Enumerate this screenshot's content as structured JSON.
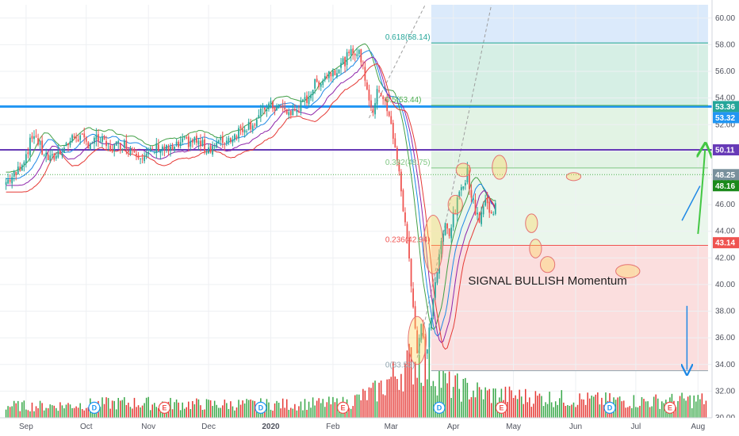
{
  "chart_data": {
    "type": "candlestick",
    "y_axis": {
      "range": [
        30.0,
        61.0
      ],
      "ticks": [
        "30.00",
        "32.00",
        "34.00",
        "36.00",
        "38.00",
        "40.00",
        "42.00",
        "44.00",
        "46.00",
        "48.00",
        "50.00",
        "52.00",
        "54.00",
        "56.00",
        "58.00",
        "60.00"
      ]
    },
    "x_axis": {
      "ticks": [
        {
          "label": "Sep",
          "day": 10
        },
        {
          "label": "Oct",
          "day": 40
        },
        {
          "label": "Nov",
          "day": 71
        },
        {
          "label": "Dec",
          "day": 101
        },
        {
          "label": "2020",
          "day": 132,
          "bold": true
        },
        {
          "label": "Feb",
          "day": 163
        },
        {
          "label": "Mar",
          "day": 192
        },
        {
          "label": "Apr",
          "day": 223
        },
        {
          "label": "May",
          "day": 253
        },
        {
          "label": "Jun",
          "day": 284
        },
        {
          "label": "Jul",
          "day": 314
        },
        {
          "label": "Aug",
          "day": 345
        }
      ]
    },
    "price_path": [
      [
        0,
        47.7
      ],
      [
        5,
        48.3
      ],
      [
        10,
        49.8
      ],
      [
        14,
        51.4
      ],
      [
        18,
        50.0
      ],
      [
        22,
        49.3
      ],
      [
        28,
        50.2
      ],
      [
        35,
        51.2
      ],
      [
        40,
        50.6
      ],
      [
        46,
        50.9
      ],
      [
        52,
        50.2
      ],
      [
        58,
        50.6
      ],
      [
        64,
        50.1
      ],
      [
        70,
        49.6
      ],
      [
        76,
        50.4
      ],
      [
        82,
        50.0
      ],
      [
        88,
        50.6
      ],
      [
        94,
        50.8
      ],
      [
        100,
        50.2
      ],
      [
        106,
        50.6
      ],
      [
        112,
        51.0
      ],
      [
        118,
        51.8
      ],
      [
        124,
        52.2
      ],
      [
        130,
        53.4
      ],
      [
        136,
        53.3
      ],
      [
        142,
        52.8
      ],
      [
        148,
        53.5
      ],
      [
        154,
        55.0
      ],
      [
        158,
        55.5
      ],
      [
        162,
        56.0
      ],
      [
        166,
        56.3
      ],
      [
        170,
        57.0
      ],
      [
        174,
        57.6
      ],
      [
        177,
        57.0
      ],
      [
        180,
        54.8
      ],
      [
        183,
        52.5
      ],
      [
        185,
        55.0
      ],
      [
        188,
        54.0
      ],
      [
        191,
        52.5
      ],
      [
        194,
        50.5
      ],
      [
        197,
        47.0
      ],
      [
        199,
        44.5
      ],
      [
        201,
        42.0
      ],
      [
        203,
        38.5
      ],
      [
        205,
        35.0
      ],
      [
        207,
        37.0
      ],
      [
        209,
        34.5
      ],
      [
        211,
        36.5
      ],
      [
        213,
        39.0
      ],
      [
        215,
        41.0
      ],
      [
        217,
        43.0
      ],
      [
        219,
        44.5
      ],
      [
        221,
        44.0
      ],
      [
        224,
        45.5
      ],
      [
        227,
        47.4
      ],
      [
        230,
        48.4
      ],
      [
        233,
        46.0
      ],
      [
        236,
        45.0
      ],
      [
        239,
        46.3
      ],
      [
        242,
        45.2
      ],
      [
        245,
        46.8
      ],
      [
        248,
        48.7
      ],
      [
        251,
        47.5
      ],
      [
        254,
        46.0
      ],
      [
        257,
        47.0
      ],
      [
        260,
        45.2
      ],
      [
        263,
        44.0
      ],
      [
        266,
        42.6
      ],
      [
        269,
        43.8
      ],
      [
        272,
        45.5
      ],
      [
        275,
        46.2
      ],
      [
        278,
        47.0
      ],
      [
        281,
        48.0
      ],
      [
        284,
        46.5
      ],
      [
        287,
        45.0
      ],
      [
        290,
        43.2
      ],
      [
        293,
        44.5
      ],
      [
        296,
        44.0
      ],
      [
        299,
        43.0
      ],
      [
        302,
        42.2
      ],
      [
        305,
        43.3
      ],
      [
        308,
        41.7
      ],
      [
        311,
        41.3
      ],
      [
        314,
        42.5
      ],
      [
        317,
        43.8
      ],
      [
        320,
        45.0
      ],
      [
        323,
        44.6
      ],
      [
        326,
        44.9
      ],
      [
        329,
        44.8
      ],
      [
        332,
        45.3
      ],
      [
        335,
        45.6
      ],
      [
        338,
        46.1
      ],
      [
        341,
        46.8
      ],
      [
        343,
        47.5
      ],
      [
        345,
        48.2
      ]
    ],
    "volume_axis_max": 100,
    "volume_path": [
      [
        0,
        8
      ],
      [
        20,
        8
      ],
      [
        60,
        10
      ],
      [
        100,
        9
      ],
      [
        140,
        9
      ],
      [
        170,
        10
      ],
      [
        185,
        18
      ],
      [
        195,
        30
      ],
      [
        205,
        40
      ],
      [
        212,
        32
      ],
      [
        220,
        22
      ],
      [
        240,
        16
      ],
      [
        260,
        14
      ],
      [
        290,
        12
      ],
      [
        320,
        11
      ],
      [
        345,
        12
      ]
    ],
    "moving_averages": [
      {
        "color": "#43a047",
        "offset": 0.75,
        "lag": 2
      },
      {
        "color": "#1e88e5",
        "offset": 0.25,
        "lag": 4
      },
      {
        "color": "#8e24aa",
        "offset": -0.25,
        "lag": 6
      },
      {
        "color": "#e53935",
        "offset": -0.75,
        "lag": 8
      }
    ],
    "horizontal_lines": [
      {
        "value": 53.36,
        "color": "#2196f3",
        "width": 3
      },
      {
        "value": 50.11,
        "color": "#673ab7",
        "width": 2
      },
      {
        "value": 48.25,
        "color": "#4caf50",
        "width": 1,
        "dotted": true
      }
    ],
    "fib_levels": [
      {
        "label": "0.618(58.14)",
        "value": 58.14,
        "color": "#26a69a"
      },
      {
        "label": "0.5(53.44)",
        "value": 53.44,
        "color": "#4caf50"
      },
      {
        "label": "0.382(48.75)",
        "value": 48.75,
        "color": "#81c784"
      },
      {
        "label": "0.236(42.94)",
        "value": 42.94,
        "color": "#ef5350"
      },
      {
        "label": "0(33.53)",
        "value": 33.53,
        "color": "#90a4ae"
      }
    ],
    "zones": [
      {
        "y1": 58.14,
        "y2": 61.0,
        "color": "#dbeafb"
      },
      {
        "y1": 53.44,
        "y2": 58.14,
        "color": "#d6efe5"
      },
      {
        "y1": 48.75,
        "y2": 53.44,
        "color": "#e2f3e4"
      },
      {
        "y1": 42.94,
        "y2": 48.75,
        "color": "#eaf6ec"
      },
      {
        "y1": 33.53,
        "y2": 42.94,
        "color": "#fbdede"
      }
    ],
    "zone_x_range": [
      212,
      350
    ],
    "price_tags": [
      {
        "value": 53.36,
        "label": "53.36",
        "color": "#26a69a"
      },
      {
        "value": 53.32,
        "label": "53.32",
        "color": "#2196f3"
      },
      {
        "value": 50.11,
        "label": "50.11",
        "color": "#673ab7"
      },
      {
        "value": 48.25,
        "label": "48.25",
        "color": "#78909c"
      },
      {
        "value": 48.16,
        "label": "48.16",
        "color": "#1b8a1b"
      },
      {
        "value": 43.14,
        "label": "43.14",
        "color": "#ef5350"
      }
    ],
    "highlight_ellipses": [
      {
        "day": 205,
        "value": 35.8,
        "rx_days": 1.5,
        "ry": 1.8
      },
      {
        "day": 213,
        "value": 43.0,
        "rx_days": 1.6,
        "ry": 2.2
      },
      {
        "day": 224,
        "value": 46.0,
        "rx_days": 1.2,
        "ry": 0.7
      },
      {
        "day": 228,
        "value": 48.6,
        "rx_days": 1.2,
        "ry": 0.5
      },
      {
        "day": 246,
        "value": 48.8,
        "rx_days": 1.2,
        "ry": 0.9
      },
      {
        "day": 262,
        "value": 44.6,
        "rx_days": 1.0,
        "ry": 0.7
      },
      {
        "day": 264,
        "value": 42.7,
        "rx_days": 1.0,
        "ry": 0.7
      },
      {
        "day": 270,
        "value": 41.5,
        "rx_days": 1.2,
        "ry": 0.6
      },
      {
        "day": 283,
        "value": 48.1,
        "rx_days": 1.2,
        "ry": 0.3
      },
      {
        "day": 310,
        "value": 41.0,
        "rx_days": 2.0,
        "ry": 0.5
      }
    ],
    "event_markers": [
      {
        "day": 44,
        "label": "D",
        "color": "#2196f3"
      },
      {
        "day": 79,
        "label": "E",
        "color": "#ef5350"
      },
      {
        "day": 127,
        "label": "D",
        "color": "#2196f3"
      },
      {
        "day": 168,
        "label": "E",
        "color": "#ef5350"
      },
      {
        "day": 216,
        "label": "D",
        "color": "#2196f3"
      },
      {
        "day": 247,
        "label": "E",
        "color": "#ef5350"
      },
      {
        "day": 301,
        "label": "D",
        "color": "#2196f3"
      },
      {
        "day": 331,
        "label": "E",
        "color": "#ef5350"
      }
    ],
    "annotation": {
      "text": "SIGNAL BULLISH Momentum",
      "day": 270,
      "value": 40.0
    }
  }
}
